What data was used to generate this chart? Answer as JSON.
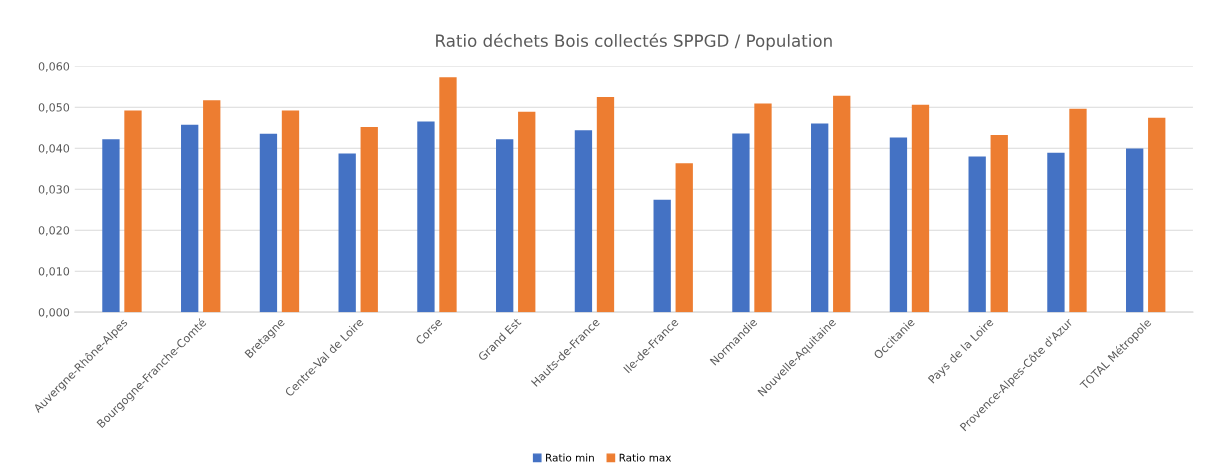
{
  "chart_data": {
    "type": "bar",
    "title": "Ratio déchets Bois collectés SPPGD / Population",
    "categories": [
      "Auvergne-Rhône-Alpes",
      "Bourgogne-Franche-Comté",
      "Bretagne",
      "Centre-Val de Loire",
      "Corse",
      "Grand Est",
      "Hauts-de-France",
      "Ile-de-France",
      "Normandie",
      "Nouvelle-Aquitaine",
      "Occitanie",
      "Pays de la Loire",
      "Provence-Alpes-Côte d'Azur",
      "TOTAL Métropole"
    ],
    "series": [
      {
        "name": "Ratio min",
        "color": "#4472c4",
        "values": [
          0.0422,
          0.0457,
          0.0435,
          0.0387,
          0.0465,
          0.0422,
          0.0444,
          0.0274,
          0.0436,
          0.046,
          0.0426,
          0.038,
          0.0389,
          0.0399
        ]
      },
      {
        "name": "Ratio max",
        "color": "#ed7d31",
        "values": [
          0.0492,
          0.0517,
          0.0492,
          0.0452,
          0.0573,
          0.0489,
          0.0525,
          0.0363,
          0.0509,
          0.0528,
          0.0506,
          0.0432,
          0.0496,
          0.0474
        ]
      }
    ],
    "ylim": [
      0,
      0.06
    ],
    "yticks": [
      {
        "value": 0,
        "label": "0,000"
      },
      {
        "value": 0.01,
        "label": "0,010"
      },
      {
        "value": 0.02,
        "label": "0,020"
      },
      {
        "value": 0.03,
        "label": "0,030"
      },
      {
        "value": 0.04,
        "label": "0,040"
      },
      {
        "value": 0.05,
        "label": "0,050"
      },
      {
        "value": 0.06,
        "label": "0,060"
      }
    ],
    "grid": "y",
    "legend": "bottom"
  }
}
